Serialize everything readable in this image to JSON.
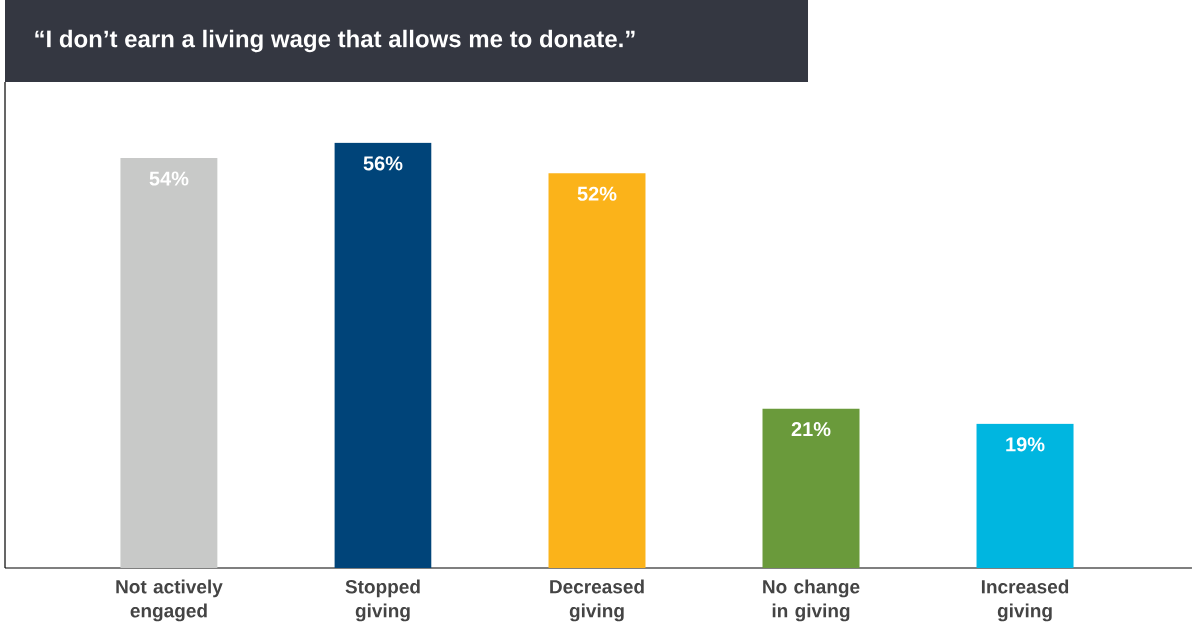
{
  "chart_data": {
    "type": "bar",
    "title": "“I don’t earn a living wage that allows me to donate.”",
    "categories": [
      "Not actively engaged",
      "Stopped giving",
      "Decreased giving",
      "No change in giving",
      "Increased giving"
    ],
    "values": [
      54,
      56,
      52,
      21,
      19
    ],
    "colors": [
      "#c8c9c8",
      "#004479",
      "#fbb31a",
      "#6a9a3b",
      "#00b6e0"
    ],
    "value_labels": [
      "54%",
      "56%",
      "52%",
      "21%",
      "19%"
    ],
    "ylim": [
      0,
      64
    ]
  }
}
